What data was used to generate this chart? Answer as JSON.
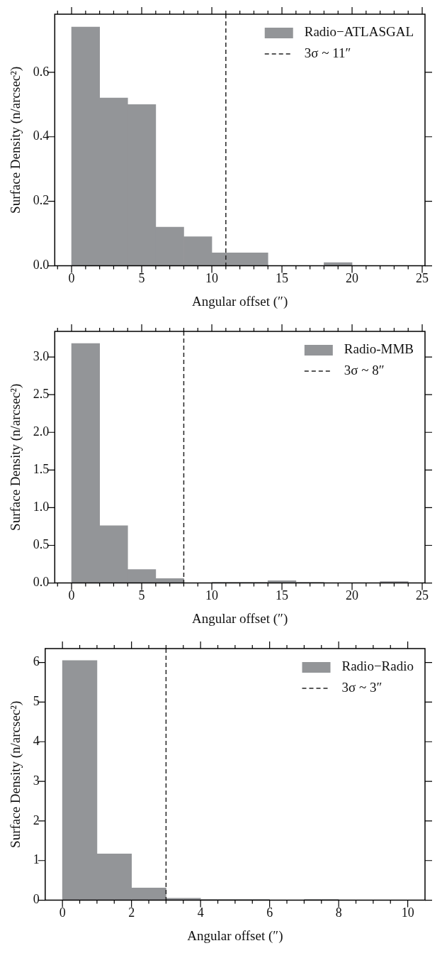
{
  "chart_data": [
    {
      "type": "histogram",
      "xlabel": "Angular offset (″)",
      "ylabel": "Surface Density (n/arcsec²)",
      "bins": [
        0,
        2,
        4,
        6,
        8,
        10,
        12,
        14,
        16,
        18,
        20,
        22,
        24
      ],
      "series": [
        {
          "name": "Radio−ATLASGAL",
          "color": "#939598",
          "values": [
            0.74,
            0.52,
            0.5,
            0.12,
            0.09,
            0.04,
            0.04,
            0,
            0,
            0.01,
            0,
            0
          ]
        }
      ],
      "xlim": [
        -1.2,
        25.2
      ],
      "ylim": [
        0,
        0.78
      ],
      "xticks": [
        {
          "value": -1,
          "label": null
        },
        0,
        {
          "value": 1,
          "label": null
        },
        {
          "value": 2,
          "label": null
        },
        {
          "value": 3,
          "label": null
        },
        {
          "value": 4,
          "label": null
        },
        5,
        {
          "value": 6,
          "label": null
        },
        {
          "value": 7,
          "label": null
        },
        {
          "value": 8,
          "label": null
        },
        {
          "value": 9,
          "label": null
        },
        10,
        {
          "value": 11,
          "label": null
        },
        {
          "value": 12,
          "label": null
        },
        {
          "value": 13,
          "label": null
        },
        {
          "value": 14,
          "label": null
        },
        15,
        {
          "value": 16,
          "label": null
        },
        {
          "value": 17,
          "label": null
        },
        {
          "value": 18,
          "label": null
        },
        {
          "value": 19,
          "label": null
        },
        20,
        {
          "value": 21,
          "label": null
        },
        {
          "value": 22,
          "label": null
        },
        {
          "value": 23,
          "label": null
        },
        {
          "value": 24,
          "label": null
        },
        25
      ],
      "yticks": [
        {
          "value": 0,
          "label": "0.0"
        },
        {
          "value": 0.2,
          "label": "0.2"
        },
        {
          "value": 0.4,
          "label": "0.4"
        },
        {
          "value": 0.6,
          "label": "0.6"
        }
      ],
      "ref_lines": [
        {
          "axis": "x",
          "value": 11,
          "label": "3σ ~ 11″",
          "color": "#222222",
          "line_style": "dashed"
        }
      ],
      "legend": "top right",
      "grid": false
    },
    {
      "type": "histogram",
      "xlabel": "Angular offset (″)",
      "ylabel": "Surface Density (n/arcsec²)",
      "bins": [
        0,
        2,
        4,
        6,
        8,
        10,
        12,
        14,
        16,
        18,
        20,
        22,
        24
      ],
      "series": [
        {
          "name": "Radio-MMB",
          "color": "#939598",
          "values": [
            3.18,
            0.76,
            0.18,
            0.06,
            0,
            0.01,
            0.01,
            0.03,
            0.01,
            0,
            0,
            0.02
          ]
        }
      ],
      "xlim": [
        -1.2,
        25.2
      ],
      "ylim": [
        0,
        3.34
      ],
      "xticks": [
        {
          "value": -1,
          "label": null
        },
        0,
        {
          "value": 1,
          "label": null
        },
        {
          "value": 2,
          "label": null
        },
        {
          "value": 3,
          "label": null
        },
        {
          "value": 4,
          "label": null
        },
        5,
        {
          "value": 6,
          "label": null
        },
        {
          "value": 7,
          "label": null
        },
        {
          "value": 8,
          "label": null
        },
        {
          "value": 9,
          "label": null
        },
        10,
        {
          "value": 11,
          "label": null
        },
        {
          "value": 12,
          "label": null
        },
        {
          "value": 13,
          "label": null
        },
        {
          "value": 14,
          "label": null
        },
        15,
        {
          "value": 16,
          "label": null
        },
        {
          "value": 17,
          "label": null
        },
        {
          "value": 18,
          "label": null
        },
        {
          "value": 19,
          "label": null
        },
        20,
        {
          "value": 21,
          "label": null
        },
        {
          "value": 22,
          "label": null
        },
        {
          "value": 23,
          "label": null
        },
        {
          "value": 24,
          "label": null
        },
        25
      ],
      "yticks": [
        {
          "value": 0,
          "label": "0.0"
        },
        {
          "value": 0.5,
          "label": "0.5"
        },
        {
          "value": 1,
          "label": "1.0"
        },
        {
          "value": 1.5,
          "label": "1.5"
        },
        {
          "value": 2,
          "label": "2.0"
        },
        {
          "value": 2.5,
          "label": "2.5"
        },
        {
          "value": 3,
          "label": "3.0"
        }
      ],
      "ref_lines": [
        {
          "axis": "x",
          "value": 8,
          "label": "3σ ~ 8″",
          "color": "#222222",
          "line_style": "dashed"
        }
      ],
      "legend": "top right",
      "grid": false
    },
    {
      "type": "histogram",
      "xlabel": "Angular offset (″)",
      "ylabel": "Surface Density (n/arcsec²)",
      "bins": [
        0,
        1,
        2,
        3,
        4,
        5,
        6,
        7,
        8,
        9,
        10
      ],
      "series": [
        {
          "name": "Radio−Radio",
          "color": "#939598",
          "values": [
            6.05,
            1.17,
            0.31,
            0.05,
            0.02,
            0.02,
            0,
            0.02,
            0,
            0
          ]
        }
      ],
      "xlim": [
        -0.5,
        10.5
      ],
      "ylim": [
        0,
        6.35
      ],
      "xticks": [
        0,
        {
          "value": 0.5,
          "label": null
        },
        {
          "value": 1,
          "label": null
        },
        {
          "value": 1.5,
          "label": null
        },
        2,
        {
          "value": 2.5,
          "label": null
        },
        {
          "value": 3,
          "label": null
        },
        {
          "value": 3.5,
          "label": null
        },
        4,
        {
          "value": 4.5,
          "label": null
        },
        {
          "value": 5,
          "label": null
        },
        {
          "value": 5.5,
          "label": null
        },
        6,
        {
          "value": 6.5,
          "label": null
        },
        {
          "value": 7,
          "label": null
        },
        {
          "value": 7.5,
          "label": null
        },
        8,
        {
          "value": 8.5,
          "label": null
        },
        {
          "value": 9,
          "label": null
        },
        {
          "value": 9.5,
          "label": null
        },
        10
      ],
      "yticks": [
        0,
        1,
        2,
        3,
        4,
        5,
        6
      ],
      "ref_lines": [
        {
          "axis": "x",
          "value": 3,
          "label": "3σ ~ 3″",
          "color": "#222222",
          "line_style": "dashed"
        }
      ],
      "legend": "top right",
      "grid": false
    }
  ]
}
